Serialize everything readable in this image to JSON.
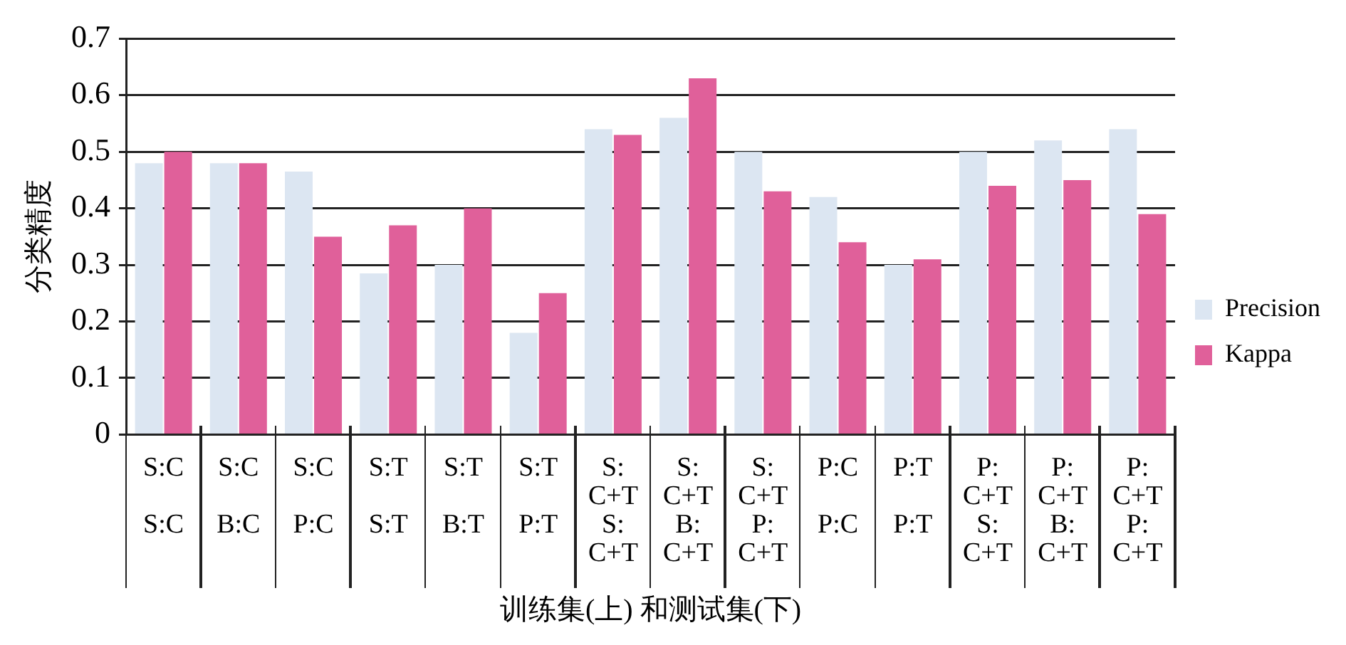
{
  "chart_data": {
    "type": "bar",
    "xlabel": "训练集(上) 和测试集(下)",
    "ylabel": "分类精度",
    "categories": [
      "S:C\nS:C",
      "S:C\nB:C",
      "S:C\nP:C",
      "S:T\nS:T",
      "S:T\nB:T",
      "S:T\nP:T",
      "S:C+T\nS:C+T",
      "S:C+T\nB:C+T",
      "S:C+T\nP:C+T",
      "P:C\nP:C",
      "P:T\nP:T",
      "P:C+T\nS:C+T",
      "P:C+T\nB:C+T",
      "P:C+T\nP:C+T"
    ],
    "series": [
      {
        "name": "Precision",
        "color": "#dce6f2",
        "values": [
          0.48,
          0.48,
          0.465,
          0.285,
          0.3,
          0.18,
          0.54,
          0.56,
          0.5,
          0.42,
          0.3,
          0.5,
          0.52,
          0.54
        ]
      },
      {
        "name": "Kappa",
        "color": "#e0609a",
        "values": [
          0.5,
          0.48,
          0.35,
          0.37,
          0.4,
          0.25,
          0.53,
          0.63,
          0.43,
          0.34,
          0.31,
          0.44,
          0.45,
          0.39
        ]
      }
    ],
    "ylim": [
      0,
      0.7
    ],
    "yticks": [
      0,
      0.1,
      0.2,
      0.3,
      0.4,
      0.5,
      0.6,
      0.7
    ],
    "grid": "y",
    "legend": "right"
  }
}
